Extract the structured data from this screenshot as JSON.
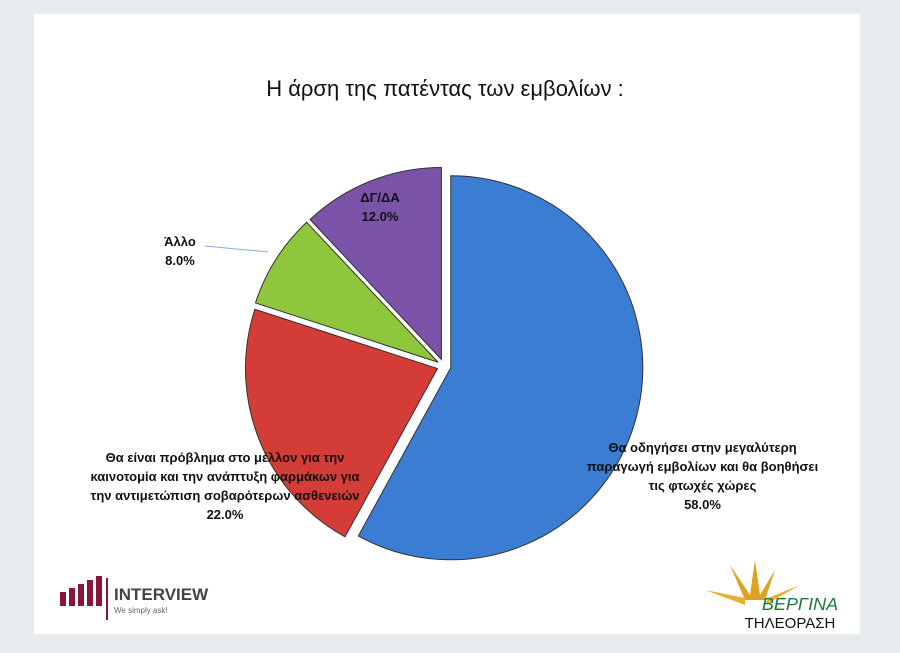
{
  "chart_data": {
    "type": "pie",
    "title": "Η άρση της πατέντας των εμβολίων :",
    "categories": [
      "Θα οδηγήσει στην μεγαλύτερη παραγωγή εμβολίων και θα βοηθήσει τις φτωχές χώρες",
      "Θα είναι πρόβλημα στο μέλλον για την καινοτομία και την ανάπτυξη φαρμάκων για την αντιμετώπιση σοβαρότερων ασθενειών",
      "Άλλο",
      "ΔΓ/ΔΑ"
    ],
    "values": [
      58,
      22,
      8,
      12
    ],
    "value_labels": [
      "58.0%",
      "22.0%",
      "8.0%",
      "12.0%"
    ],
    "colors": [
      "#3b7dd2",
      "#d43c37",
      "#8ec63c",
      "#7b53a9"
    ]
  },
  "logos": {
    "left": "INTERVIEW",
    "left_tagline": "We simply ask!",
    "right": "ΒΕΡΓΙΝΑ",
    "right_sub": "ΤΗΛΕΟΡΑΣΗ"
  }
}
